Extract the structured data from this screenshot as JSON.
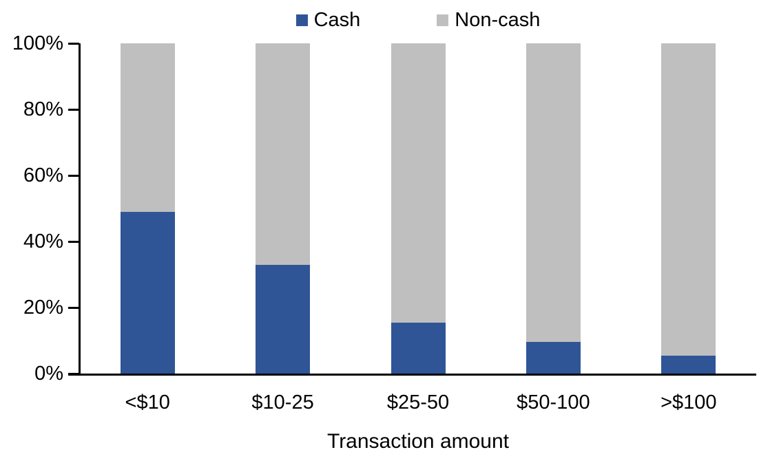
{
  "chart_data": {
    "type": "bar",
    "stacked": true,
    "title": "",
    "xlabel": "Transaction amount",
    "ylabel": "",
    "categories": [
      "<$10",
      "$10-25",
      "$25-50",
      "$50-100",
      ">$100"
    ],
    "series": [
      {
        "name": "Cash",
        "color": "#2F5597",
        "values": [
          49,
          33,
          15.5,
          9.5,
          5.5
        ]
      },
      {
        "name": "Non-cash",
        "color": "#BFBFBF",
        "values": [
          51,
          67,
          84.5,
          90.5,
          94.5
        ]
      }
    ],
    "ylim": [
      0,
      100
    ],
    "y_ticks": [
      {
        "value": 0,
        "label": "0%"
      },
      {
        "value": 20,
        "label": "20%"
      },
      {
        "value": 40,
        "label": "40%"
      },
      {
        "value": 60,
        "label": "60%"
      },
      {
        "value": 80,
        "label": "80%"
      },
      {
        "value": 100,
        "label": "100%"
      }
    ],
    "legend_position": "top",
    "grid": false,
    "axis_color": "#000000",
    "text_color": "#000000",
    "background": "#FFFFFF"
  }
}
